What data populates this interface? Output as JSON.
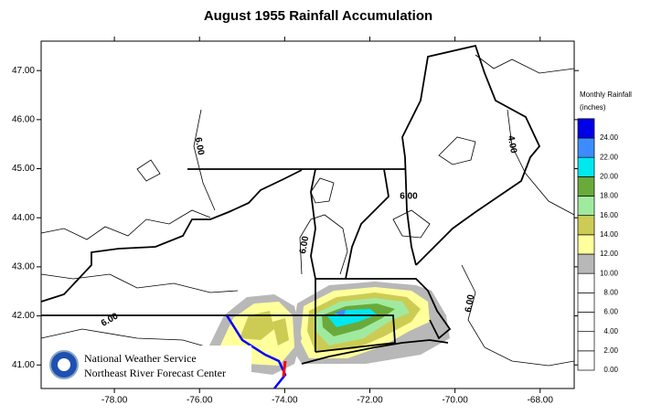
{
  "title": "August 1955 Rainfall Accumulation",
  "map": {
    "xlim": [
      -79.72,
      -67.2
    ],
    "ylim": [
      40.52,
      47.6
    ],
    "xticks": [
      {
        "value": -78,
        "label": "-78.00"
      },
      {
        "value": -76,
        "label": "-76.00"
      },
      {
        "value": -74,
        "label": "-74.00"
      },
      {
        "value": -72,
        "label": "-72.00"
      },
      {
        "value": -70,
        "label": "-70.00"
      },
      {
        "value": -68,
        "label": "-68.00"
      }
    ],
    "yticks": [
      {
        "value": 41,
        "label": "41.00"
      },
      {
        "value": 42,
        "label": "42.00"
      },
      {
        "value": 43,
        "label": "43.00"
      },
      {
        "value": 44,
        "label": "44.00"
      },
      {
        "value": 45,
        "label": "45.00"
      },
      {
        "value": 46,
        "label": "46.00"
      },
      {
        "value": 47,
        "label": "47.00"
      }
    ]
  },
  "legend": {
    "title": "Monthly Rainfall",
    "subtitle": "(inches)",
    "levels": [
      {
        "value": 0,
        "label": "0.00"
      },
      {
        "value": 2,
        "label": "2.00"
      },
      {
        "value": 4,
        "label": "4.00"
      },
      {
        "value": 6,
        "label": "6.00"
      },
      {
        "value": 8,
        "label": "8.00"
      },
      {
        "value": 10,
        "label": "10.00"
      },
      {
        "value": 12,
        "label": "12.00"
      },
      {
        "value": 14,
        "label": "14.00"
      },
      {
        "value": 16,
        "label": "16.00"
      },
      {
        "value": 18,
        "label": "18.00"
      },
      {
        "value": 20,
        "label": "20.00"
      },
      {
        "value": 22,
        "label": "22.00"
      },
      {
        "value": 24,
        "label": "24.00"
      }
    ],
    "colors": [
      "#ffffff",
      "#ffffff",
      "#ffffff",
      "#ffffff",
      "#ffffff",
      "#b8b8b8",
      "#ffff9c",
      "#cccc55",
      "#a0eaa0",
      "#6aaa3a",
      "#00e8f0",
      "#3c8cff",
      "#0000e8"
    ]
  },
  "contour_labels": [
    "6.00",
    "6.00",
    "6.00",
    "6.00",
    "6.00",
    "4.00"
  ],
  "logo": {
    "line1": "National Weather Service",
    "line2": "Northeast River Forecast Center"
  }
}
